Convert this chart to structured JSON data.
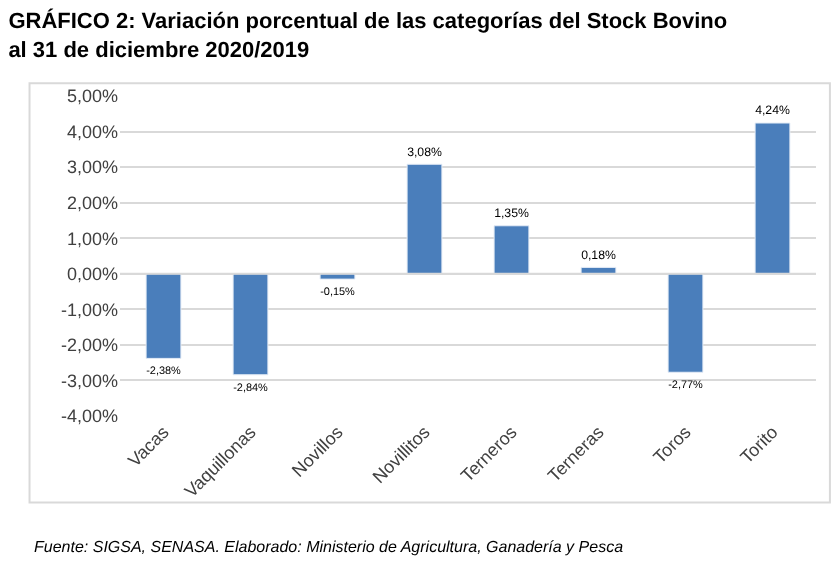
{
  "chart_data": {
    "type": "bar",
    "title": "GRÁFICO 2: Variación porcentual de las categorías del Stock Bovino  al 31 de diciembre 2020/2019",
    "categories": [
      "Vacas",
      "Vaquillonas",
      "Novillos",
      "Novillitos",
      "Terneros",
      "Terneras",
      "Toros",
      "Torito"
    ],
    "values": [
      -2.38,
      -2.84,
      -0.15,
      3.08,
      1.35,
      0.18,
      -2.77,
      4.24
    ],
    "value_labels": [
      "-2,38%",
      "-2,84%",
      "-0,15%",
      "3,08%",
      "1,35%",
      "0,18%",
      "-2,77%",
      "4,24%"
    ],
    "color": "#4a7ebb",
    "ylim": [
      -4,
      5
    ],
    "yticks": [
      {
        "value": -4,
        "label": "-4,00%"
      },
      {
        "value": -3,
        "label": "-3,00%"
      },
      {
        "value": -2,
        "label": "-2,00%"
      },
      {
        "value": -1,
        "label": "-1,00%"
      },
      {
        "value": 0,
        "label": "0,00%"
      },
      {
        "value": 1,
        "label": "1,00%"
      },
      {
        "value": 2,
        "label": "2,00%"
      },
      {
        "value": 3,
        "label": "3,00%"
      },
      {
        "value": 4,
        "label": "4,00%"
      },
      {
        "value": 5,
        "label": "5,00%"
      }
    ],
    "grid": "y",
    "annotations": [
      "Fuente: SIGSA, SENASA. Elaborado: Ministerio de Agricultura, Ganadería y Pesca"
    ]
  }
}
